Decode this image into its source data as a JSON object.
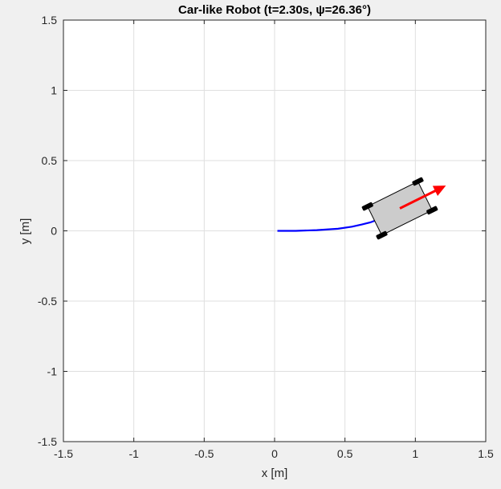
{
  "chart_data": {
    "type": "line",
    "title": "Car-like Robot (t=2.30s, ψ=26.36°)",
    "xlabel": "x [m]",
    "ylabel": "y [m]",
    "xlim": [
      -1.5,
      1.5
    ],
    "ylim": [
      -1.5,
      1.5
    ],
    "xticks": [
      "-1.5",
      "-1",
      "-0.5",
      "0",
      "0.5",
      "1",
      "1.5"
    ],
    "yticks": [
      "-1.5",
      "-1",
      "-0.5",
      "0",
      "0.5",
      "1",
      "1.5"
    ],
    "grid": true,
    "series": [
      {
        "color": "#0000ff",
        "x": [
          0.02,
          0.15,
          0.3,
          0.45,
          0.55,
          0.62,
          0.68,
          0.72
        ],
        "y": [
          0.0,
          0.0,
          0.005,
          0.015,
          0.03,
          0.045,
          0.06,
          0.075
        ]
      }
    ],
    "robot": {
      "x": 0.89,
      "y": 0.16,
      "heading_deg": 26.36,
      "body_color": "#cccccc",
      "arrow_color": "#ff0000"
    }
  }
}
